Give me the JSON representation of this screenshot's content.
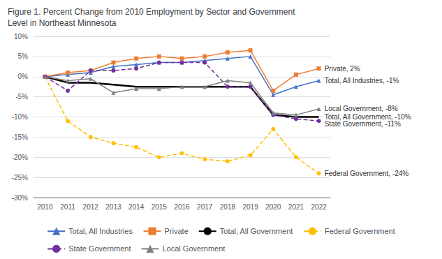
{
  "chart_data": {
    "type": "line",
    "title": "Figure 1. Percent Change from 2010 Employment by Sector and Government\nLevel in Northeast Minnesota",
    "categories": [
      "2010",
      "2011",
      "2012",
      "2013",
      "2014",
      "2015",
      "2016",
      "2017",
      "2018",
      "2019",
      "2020",
      "2021",
      "2022"
    ],
    "series": [
      {
        "name": "Total, All Industries",
        "color": "#4472C4",
        "marker": "triangle",
        "line_style": "solid",
        "values": [
          0,
          0.5,
          1.0,
          2.5,
          3.0,
          3.5,
          3.5,
          4.0,
          4.5,
          5.0,
          -4.5,
          -2.5,
          -1
        ]
      },
      {
        "name": "Private",
        "color": "#ED7D31",
        "marker": "square",
        "line_style": "solid",
        "values": [
          0,
          1.0,
          1.5,
          3.5,
          4.5,
          5.0,
          4.5,
          5.0,
          6.0,
          6.5,
          -3.5,
          0.5,
          2
        ]
      },
      {
        "name": "Total, All Government",
        "color": "#000000",
        "marker": "none",
        "line_style": "solid",
        "values": [
          0,
          -1.5,
          -1.5,
          -2.0,
          -2.5,
          -2.5,
          -2.5,
          -2.5,
          -2.5,
          -2.5,
          -9.5,
          -10.0,
          -10
        ]
      },
      {
        "name": "Federal Government",
        "color": "#FFC000",
        "marker": "circle",
        "line_style": "dashed",
        "values": [
          0,
          -11.0,
          -15.0,
          -16.5,
          -17.5,
          -20.0,
          -19.0,
          -20.5,
          -21.0,
          -19.5,
          -13.0,
          -20.0,
          -24
        ]
      },
      {
        "name": "State Government",
        "color": "#7030A0",
        "marker": "circle",
        "line_style": "dashed",
        "values": [
          0,
          -3.5,
          1.5,
          1.5,
          2.0,
          3.5,
          3.5,
          3.5,
          -2.5,
          -2.5,
          -9.5,
          -10.5,
          -11
        ]
      },
      {
        "name": "Local Government",
        "color": "#808080",
        "marker": "triangle",
        "line_style": "solid",
        "values": [
          0,
          -1.0,
          -0.5,
          -4.0,
          -3.0,
          -3.0,
          -2.5,
          -2.5,
          -1.0,
          -1.5,
          -9.0,
          -9.5,
          -8
        ]
      }
    ],
    "ylim": [
      -30,
      10
    ],
    "yticks": [
      {
        "value": 10,
        "label": "10%"
      },
      {
        "value": 5,
        "label": "5%"
      },
      {
        "value": 0,
        "label": "0%"
      },
      {
        "value": -5,
        "label": "-5%"
      },
      {
        "value": -10,
        "label": "-10%"
      },
      {
        "value": -15,
        "label": "-15%"
      },
      {
        "value": -20,
        "label": "-20%"
      },
      {
        "value": -25,
        "label": "-25%"
      },
      {
        "value": -30,
        "label": "-30%"
      }
    ],
    "grid": true,
    "legend": "bottom",
    "annotations": [
      {
        "series": "Private",
        "label": "Private, 2%"
      },
      {
        "series": "Total, All Industries",
        "label": "Total, All Industries, -1%"
      },
      {
        "series": "Local Government",
        "label": "Local Government, -8%"
      },
      {
        "series": "Total, All Government",
        "label": "Total, All Government, -10%"
      },
      {
        "series": "State Government",
        "label": "State Government, -11%"
      },
      {
        "series": "Federal Government",
        "label": "Federal Government, -24%"
      }
    ]
  }
}
